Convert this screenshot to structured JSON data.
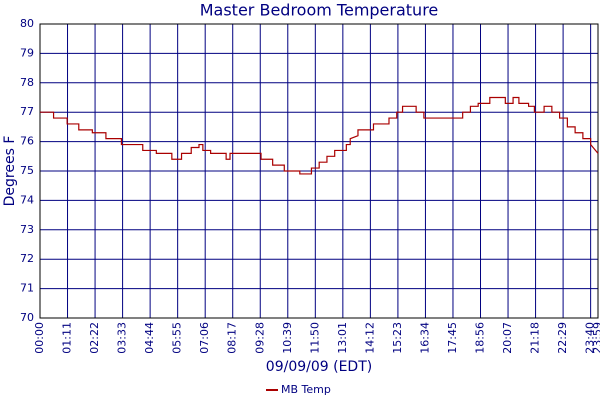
{
  "chart_data": {
    "type": "line",
    "title": "Master Bedroom Temperature",
    "xlabel": "09/09/09 (EDT)",
    "ylabel": "Degrees F",
    "x": [
      0,
      35,
      35,
      70,
      70,
      100,
      100,
      135,
      135,
      170,
      170,
      210,
      210,
      265,
      265,
      300,
      300,
      340,
      340,
      365,
      365,
      390,
      390,
      410,
      410,
      420,
      420,
      440,
      440,
      480,
      480,
      490,
      490,
      570,
      570,
      600,
      600,
      630,
      630,
      670,
      670,
      700,
      700,
      720,
      720,
      740,
      740,
      760,
      760,
      790,
      790,
      800,
      800,
      820,
      820,
      860,
      860,
      900,
      900,
      920,
      920,
      935,
      935,
      970,
      970,
      990,
      990,
      1090,
      1090,
      1110,
      1110,
      1130,
      1130,
      1160,
      1160,
      1200,
      1200,
      1220,
      1220,
      1235,
      1235,
      1260,
      1260,
      1275,
      1275,
      1300,
      1300,
      1320,
      1320,
      1340,
      1340,
      1360,
      1360,
      1380,
      1380,
      1400,
      1400,
      1420,
      1420,
      1439
    ],
    "series": [
      {
        "name": "MB Temp",
        "color": "#aa0000",
        "values": [
          77.0,
          77.0,
          76.8,
          76.8,
          76.6,
          76.6,
          76.4,
          76.4,
          76.3,
          76.3,
          76.1,
          76.1,
          75.9,
          75.9,
          75.7,
          75.7,
          75.6,
          75.6,
          75.4,
          75.4,
          75.6,
          75.6,
          75.8,
          75.8,
          75.9,
          75.9,
          75.7,
          75.7,
          75.6,
          75.6,
          75.4,
          75.4,
          75.6,
          75.6,
          75.4,
          75.4,
          75.2,
          75.2,
          75.0,
          75.0,
          74.9,
          74.9,
          75.1,
          75.1,
          75.3,
          75.3,
          75.5,
          75.5,
          75.7,
          75.7,
          75.9,
          75.9,
          76.1,
          76.2,
          76.4,
          76.4,
          76.6,
          76.6,
          76.8,
          76.8,
          77.0,
          77.0,
          77.2,
          77.2,
          77.0,
          77.0,
          76.8,
          76.8,
          77.0,
          77.0,
          77.2,
          77.2,
          77.3,
          77.3,
          77.5,
          77.5,
          77.3,
          77.3,
          77.5,
          77.5,
          77.3,
          77.3,
          77.2,
          77.2,
          77.0,
          77.0,
          77.2,
          77.2,
          77.0,
          77.0,
          76.8,
          76.8,
          76.5,
          76.5,
          76.3,
          76.3,
          76.1,
          76.1,
          75.9,
          75.6
        ]
      }
    ],
    "xlim": [
      0,
      1439
    ],
    "ylim": [
      70,
      80
    ],
    "yticks": [
      70,
      71,
      72,
      73,
      74,
      75,
      76,
      77,
      78,
      79,
      80
    ],
    "xticks": [
      {
        "value": 0,
        "label": "00:00"
      },
      {
        "value": 71,
        "label": "01:11"
      },
      {
        "value": 142,
        "label": "02:22"
      },
      {
        "value": 213,
        "label": "03:33"
      },
      {
        "value": 284,
        "label": "04:44"
      },
      {
        "value": 355,
        "label": "05:55"
      },
      {
        "value": 426,
        "label": "07:06"
      },
      {
        "value": 497,
        "label": "08:17"
      },
      {
        "value": 568,
        "label": "09:28"
      },
      {
        "value": 639,
        "label": "10:39"
      },
      {
        "value": 710,
        "label": "11:50"
      },
      {
        "value": 781,
        "label": "13:01"
      },
      {
        "value": 852,
        "label": "14:12"
      },
      {
        "value": 923,
        "label": "15:23"
      },
      {
        "value": 994,
        "label": "16:34"
      },
      {
        "value": 1065,
        "label": "17:45"
      },
      {
        "value": 1136,
        "label": "18:56"
      },
      {
        "value": 1207,
        "label": "20:07"
      },
      {
        "value": 1278,
        "label": "21:18"
      },
      {
        "value": 1349,
        "label": "22:29"
      },
      {
        "value": 1420,
        "label": "23:40"
      },
      {
        "value": 1439,
        "label": "23:59"
      }
    ],
    "grid": true
  }
}
